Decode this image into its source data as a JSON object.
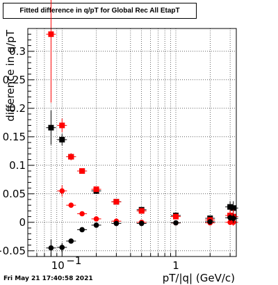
{
  "chart_data": {
    "type": "scatter",
    "title": "Fitted difference in q/pT for Global Rec All EtapT",
    "xlabel": "pT/|q| (GeV/c)",
    "ylabel": "difference in q/pT",
    "x_scale": "log",
    "xlim": [
      0.05,
      3.4
    ],
    "ylim": [
      -0.06,
      0.34
    ],
    "grid": true,
    "x_ticks": [
      {
        "value": 0.1,
        "base": "10",
        "exp": "−1"
      },
      {
        "value": 1,
        "label": "1"
      }
    ],
    "y_ticks": [
      {
        "value": -0.05,
        "label": "−0.05"
      },
      {
        "value": 0,
        "label": "0"
      },
      {
        "value": 0.05,
        "label": "0.05"
      },
      {
        "value": 0.1,
        "label": "0.1"
      },
      {
        "value": 0.15,
        "label": "0.15"
      },
      {
        "value": 0.2,
        "label": "0.2"
      },
      {
        "value": 0.25,
        "label": "0.25"
      },
      {
        "value": 0.3,
        "label": "0.3"
      }
    ],
    "series": [
      {
        "color": "#000000",
        "marker": "square",
        "x": [
          0.08,
          0.1,
          0.12,
          0.15,
          0.2,
          0.3,
          0.5,
          1.0,
          2.0,
          3.0,
          3.2
        ],
        "y": [
          0.166,
          0.145,
          0.115,
          0.09,
          0.055,
          0.036,
          0.022,
          0.012,
          0.007,
          0.027,
          0.025
        ],
        "err": [
          0.03,
          0.01,
          0.006,
          0.004,
          0.003,
          0.002,
          0.002,
          0.002,
          0.003,
          0.01,
          0.012
        ]
      },
      {
        "color": "#ff0000",
        "marker": "square",
        "x": [
          0.08,
          0.1,
          0.12,
          0.15,
          0.2,
          0.3,
          0.5,
          1.0,
          2.0,
          3.0,
          3.2
        ],
        "y": [
          0.33,
          0.17,
          0.115,
          0.09,
          0.058,
          0.036,
          0.02,
          0.01,
          0.004,
          0.012,
          0.01
        ],
        "err": [
          0.12,
          0.012,
          0.006,
          0.004,
          0.003,
          0.002,
          0.002,
          0.002,
          0.003,
          0.01,
          0.012
        ]
      },
      {
        "color": "#ff0000",
        "marker": "circle",
        "x": [
          0.1,
          0.12,
          0.15,
          0.2,
          0.3,
          0.5,
          1.0,
          2.0,
          3.0,
          3.2
        ],
        "y": [
          0.055,
          0.03,
          0.015,
          0.006,
          0.002,
          0.0,
          -0.001,
          -0.001,
          0.0,
          0.0
        ],
        "err": [
          0.01,
          0.004,
          0.003,
          0.002,
          0.002,
          0.002,
          0.002,
          0.002,
          0.005,
          0.006
        ]
      },
      {
        "color": "#000000",
        "marker": "circle",
        "x": [
          0.08,
          0.1,
          0.12,
          0.15,
          0.2,
          0.3,
          0.5,
          1.0,
          2.0,
          3.0,
          3.2
        ],
        "y": [
          -0.045,
          -0.044,
          -0.033,
          -0.013,
          -0.005,
          -0.002,
          -0.002,
          -0.001,
          0.001,
          0.008,
          0.007
        ],
        "err": [
          0.015,
          0.008,
          0.004,
          0.003,
          0.002,
          0.002,
          0.002,
          0.002,
          0.003,
          0.006,
          0.008
        ]
      }
    ]
  },
  "footer": {
    "date": "Fri May 21 17:40:58 2021"
  }
}
